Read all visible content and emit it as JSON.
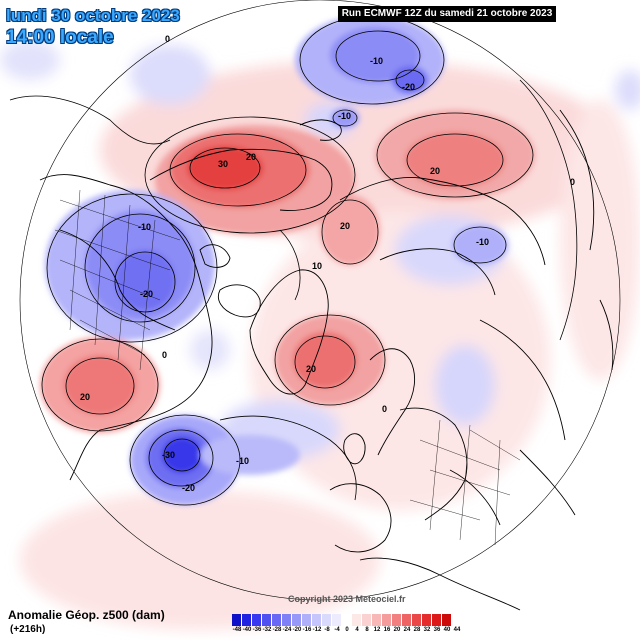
{
  "header": {
    "date_line": "lundi 30 octobre 2023",
    "time_line": "14:00 locale",
    "run_info": "Run ECMWF 12Z du samedi 21 octobre 2023"
  },
  "footer": {
    "field_name": "Anomalie Géop. z500 (dam)",
    "lead_time": "(+216h)",
    "copyright": "Copyright 2023 Meteociel.fr"
  },
  "legend": {
    "labels": [
      "-48",
      "-40",
      "-36",
      "-32",
      "-28",
      "-24",
      "-20",
      "-16",
      "-12",
      "-8",
      "-4",
      "0",
      "4",
      "8",
      "12",
      "16",
      "20",
      "24",
      "28",
      "32",
      "36",
      "40",
      "44"
    ],
    "colors": [
      "#1010c8",
      "#2020e0",
      "#3838f0",
      "#5050f0",
      "#6868f4",
      "#8080f6",
      "#9898f8",
      "#b0b0fa",
      "#c6c6fc",
      "#dadafd",
      "#ececfe",
      "#ffffff",
      "#fde8e8",
      "#fbd2d2",
      "#f8b8b8",
      "#f59c9c",
      "#f28080",
      "#ee6464",
      "#ea4848",
      "#e42c2c",
      "#dc1818",
      "#cc0a0a"
    ]
  },
  "contour_labels": [
    {
      "text": "0",
      "name": "label-0-top-left"
    },
    {
      "text": "-10",
      "name": "label-minus10-siberia"
    },
    {
      "text": "-20",
      "name": "label-minus20-siberia"
    },
    {
      "text": "-10",
      "name": "label-minus10-bering"
    },
    {
      "text": "20",
      "name": "label-20-east-asia"
    },
    {
      "text": "0",
      "name": "label-0-right"
    },
    {
      "text": "30",
      "name": "label-30-alaska"
    },
    {
      "text": "20",
      "name": "label-20-alaska"
    },
    {
      "text": "20",
      "name": "label-20-canada"
    },
    {
      "text": "10",
      "name": "label-10-arctic"
    },
    {
      "text": "-10",
      "name": "label-minus10-central-asia"
    },
    {
      "text": "-10",
      "name": "label-minus10-north-america"
    },
    {
      "text": "-20",
      "name": "label-minus20-north-america"
    },
    {
      "text": "20",
      "name": "label-20-greenland"
    },
    {
      "text": "0",
      "name": "label-0-canada"
    },
    {
      "text": "20",
      "name": "label-20-mexico"
    },
    {
      "text": "-30",
      "name": "label-minus30-atlantic"
    },
    {
      "text": "-20",
      "name": "label-minus20-atlantic"
    },
    {
      "text": "-10",
      "name": "label-minus10-atlantic"
    },
    {
      "text": "0",
      "name": "label-0-europe"
    }
  ]
}
